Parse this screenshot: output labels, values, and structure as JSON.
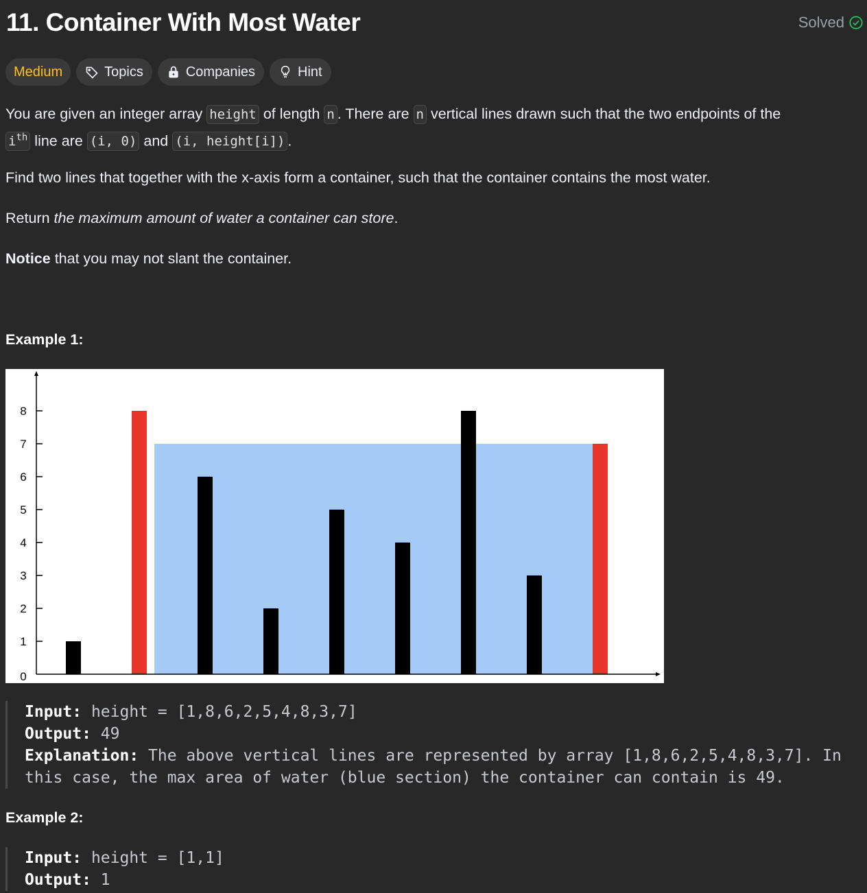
{
  "problem": {
    "title": "11. Container With Most Water",
    "status": "Solved"
  },
  "tags": {
    "difficulty": "Medium",
    "topics": "Topics",
    "companies": "Companies",
    "hint": "Hint"
  },
  "description": {
    "p1_a": "You are given an integer array ",
    "p1_code1": "height",
    "p1_b": " of length ",
    "p1_code2": "n",
    "p1_c": ". There are ",
    "p1_code3": "n",
    "p1_d": " vertical lines drawn such that the two endpoints of the",
    "p1_code4": "i",
    "p1_sup": "th",
    "p1_e": " line are ",
    "p1_code5": "(i, 0)",
    "p1_f": " and ",
    "p1_code6": "(i, height[i])",
    "p1_g": ".",
    "p2": "Find two lines that together with the x-axis form a container, such that the container contains the most water.",
    "p3_a": "Return ",
    "p3_em": "the maximum amount of water a container can store",
    "p3_b": ".",
    "p4_bold": "Notice",
    "p4_rest": " that you may not slant the container."
  },
  "example1": {
    "heading": "Example 1:",
    "input_label": "Input:",
    "input_value": " height = [1,8,6,2,5,4,8,3,7]",
    "output_label": "Output:",
    "output_value": " 49",
    "explanation_label": "Explanation:",
    "explanation_line1": " The above vertical lines are represented by array [1,8,6,2,5,4,8,3,7]. In",
    "explanation_line2": "this case, the max area of water (blue section) the container can contain is 49."
  },
  "example2": {
    "heading": "Example 2:",
    "input_label": "Input:",
    "input_value": " height = [1,1]",
    "output_label": "Output:",
    "output_value": " 1"
  },
  "chart_data": {
    "type": "bar",
    "heights": [
      1,
      8,
      6,
      2,
      5,
      4,
      8,
      3,
      7
    ],
    "highlighted_indices": [
      1,
      8
    ],
    "water_level": 7,
    "y_ticks": [
      "0",
      "1",
      "2",
      "3",
      "4",
      "5",
      "6",
      "7",
      "8"
    ],
    "ylim": [
      0,
      8
    ],
    "colors": {
      "bar": "#000000",
      "highlight": "#e8352a",
      "water": "#a6cbf8"
    }
  },
  "colors": {
    "background": "#282828",
    "medium": "#ffc01e",
    "solved_check": "#2cbb5d"
  }
}
